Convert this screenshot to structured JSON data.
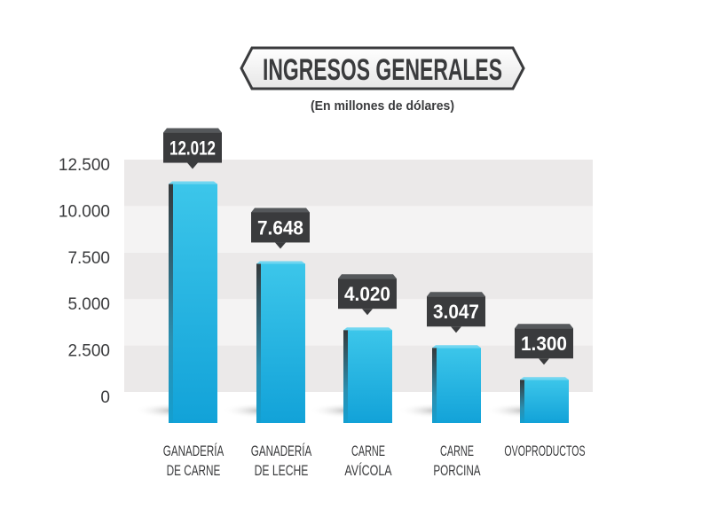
{
  "chart_data": {
    "type": "bar",
    "title": "INGRESOS GENERALES",
    "subtitle": "(En millones de dólares)",
    "xlabel": "",
    "ylabel": "",
    "ylim": [
      0,
      12500
    ],
    "yticks": [
      "0",
      "2.500",
      "5.000",
      "7.500",
      "10.000",
      "12.500"
    ],
    "ytick_values": [
      0,
      2500,
      5000,
      7500,
      10000,
      12500
    ],
    "grid": "alternating bands",
    "categories": [
      [
        "GANADERÍA",
        "DE CARNE"
      ],
      [
        "GANADERÍA",
        "DE LECHE"
      ],
      [
        "CARNE",
        "AVÍCOLA"
      ],
      [
        "CARNE",
        "PORCINA"
      ],
      [
        "OVOPRODUCTOS"
      ]
    ],
    "values": [
      12012,
      7648,
      4020,
      3047,
      1300
    ],
    "data_labels": [
      "12.012",
      "7.648",
      "4.020",
      "3.047",
      "1.300"
    ],
    "colors": {
      "bar": "#2cb8e2",
      "bar_side": "#3a3b3d",
      "label_box": "#3a3b3d",
      "text": "#3a3b3d",
      "band_dark": "#ebe9e9",
      "band_light": "#f4f3f3"
    }
  }
}
